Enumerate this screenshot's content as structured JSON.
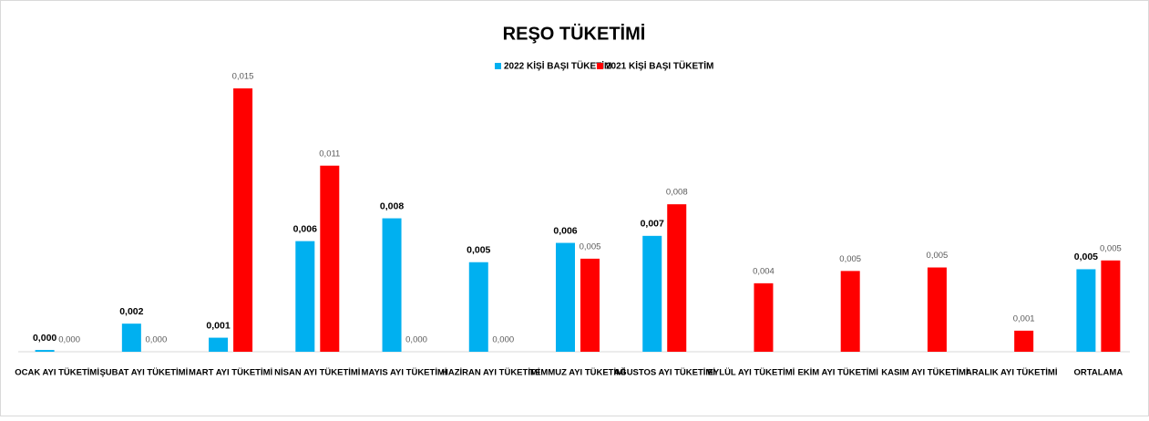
{
  "chart_data": {
    "type": "bar",
    "title": "REŞO TÜKETİMİ",
    "categories": [
      "OCAK AYI TÜKETİMİ",
      "ŞUBAT AYI TÜKETİMİ",
      "MART AYI TÜKETİMİ",
      "NİSAN AYI TÜKETİMİ",
      "MAYIS AYI TÜKETİMİ",
      "HAZİRAN AYI TÜKETİMİ",
      "TEMMUZ AYI TÜKETİMİ",
      "AĞUSTOS AYI TÜKETİMİ",
      "EYLÜL AYI TÜKETİMİ",
      "EKİM AYI TÜKETİMİ",
      "KASIM AYI TÜKETİMİ",
      "ARALIK AYI TÜKETİMİ",
      "ORTALAMA"
    ],
    "series": [
      {
        "name": "2022 KİŞİ BAŞI TÜKETİM",
        "color": "#00b0f0",
        "values": [
          0.0001,
          0.0016,
          0.0008,
          0.0063,
          0.0076,
          0.0051,
          0.0062,
          0.0066,
          null,
          null,
          null,
          null,
          0.0047
        ],
        "value_labels": [
          "0,000",
          "0,002",
          "0,001",
          "0,006",
          "0,008",
          "0,005",
          "0,006",
          "0,007",
          null,
          null,
          null,
          null,
          "0,005"
        ]
      },
      {
        "name": "2021 KİŞİ BAŞI TÜKETİM",
        "color": "#ff0000",
        "values": [
          0,
          0,
          0.015,
          0.0106,
          0,
          0,
          0.0053,
          0.0084,
          0.0039,
          0.0046,
          0.0048,
          0.0012,
          0.0052
        ],
        "value_labels": [
          "0,000",
          "0,000",
          "0,015",
          "0,011",
          "0,000",
          "0,000",
          "0,005",
          "0,008",
          "0,004",
          "0,005",
          "0,005",
          "0,001",
          "0,005"
        ]
      }
    ],
    "ylim": [
      0,
      0.015
    ],
    "legend": "top"
  }
}
